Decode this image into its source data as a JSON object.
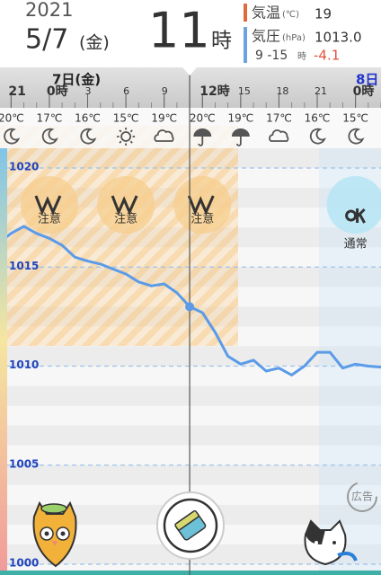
{
  "header": {
    "year": "2021",
    "date": "5/7",
    "weekday": "(金)",
    "hour": "11",
    "hour_unit": "時",
    "temperature": {
      "label": "気温",
      "unit": "(℃)",
      "value": "19"
    },
    "pressure": {
      "label": "気圧",
      "unit": "(hPa)",
      "value": "1013.0",
      "change_period": "9 -15",
      "change_period_unit": "時",
      "change": "-4.1"
    }
  },
  "timeline": {
    "days": [
      "7日(金)",
      "8日"
    ],
    "temperatures": [
      "20℃",
      "17℃",
      "16℃",
      "15℃",
      "19℃",
      "20℃",
      "19℃",
      "17℃",
      "16℃",
      "15℃"
    ]
  },
  "chart_data": {
    "type": "line",
    "x": [
      -4,
      -3,
      -2,
      -1,
      0,
      1,
      2,
      3,
      4,
      5,
      6,
      7,
      8,
      9,
      10,
      11,
      12,
      13,
      14,
      15,
      16,
      17,
      18,
      19,
      20,
      21,
      22,
      23,
      24,
      25,
      26
    ],
    "series": [
      {
        "color": "#5b9be8",
        "values": [
          1016.2,
          1016.7,
          1017.05,
          1016.7,
          1016.45,
          1016.1,
          1015.5,
          1015.3,
          1015.15,
          1014.9,
          1014.65,
          1014.25,
          1014.05,
          1014.15,
          1013.7,
          1013.0,
          1012.7,
          1011.7,
          1010.5,
          1010.1,
          1010.3,
          1009.75,
          1009.9,
          1009.55,
          1010.0,
          1010.7,
          1010.7,
          1009.9,
          1010.1,
          1010.0,
          1009.95
        ]
      }
    ],
    "xlim": [
      -3.87,
      26
    ],
    "ylim": [
      1000,
      1020
    ],
    "xticks": [
      {
        "value": -3,
        "label": "21"
      },
      {
        "value": 0,
        "label": "0時"
      },
      3,
      6,
      9,
      {
        "value": 12,
        "label": "12時"
      },
      15,
      18,
      21,
      {
        "value": 24,
        "label": "0時"
      }
    ],
    "yticks": [
      1000,
      1005,
      1010,
      1015,
      1020
    ]
  },
  "badges": [
    "注意",
    "注意",
    "注意",
    "通常"
  ],
  "ad": "広告"
}
